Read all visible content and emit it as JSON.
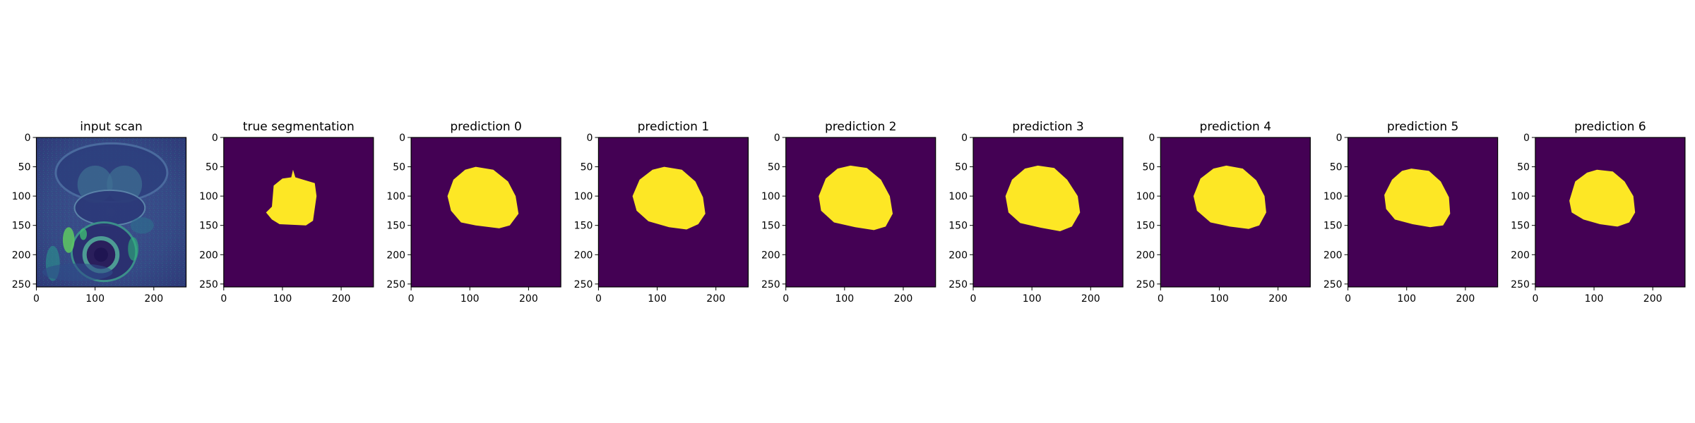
{
  "figure": {
    "colors": {
      "background": "#440154",
      "mask": "#fde725",
      "scan_dark": "#3b2b78",
      "scan_mid": "#2f6a8e",
      "scan_bright": "#5ec962"
    }
  },
  "chart_data": [
    {
      "type": "heatmap",
      "title": "input scan",
      "image": "grayscale MRI scan rendered with viridis colormap",
      "xlim": [
        0,
        255
      ],
      "ylim": [
        255,
        0
      ],
      "xticks": [
        0,
        100,
        200
      ],
      "yticks": [
        0,
        50,
        100,
        150,
        200,
        250
      ]
    },
    {
      "type": "heatmap",
      "title": "true segmentation",
      "image": "binary mask",
      "mask_outline": [
        [
          118,
          55
        ],
        [
          122,
          68
        ],
        [
          155,
          78
        ],
        [
          158,
          100
        ],
        [
          152,
          142
        ],
        [
          140,
          150
        ],
        [
          95,
          148
        ],
        [
          82,
          140
        ],
        [
          72,
          128
        ],
        [
          82,
          118
        ],
        [
          85,
          82
        ],
        [
          100,
          70
        ],
        [
          115,
          68
        ]
      ],
      "xlim": [
        0,
        255
      ],
      "ylim": [
        255,
        0
      ],
      "xticks": [
        0,
        100,
        200
      ],
      "yticks": [
        0,
        50,
        100,
        150,
        200,
        250
      ]
    },
    {
      "type": "heatmap",
      "title": "prediction 0",
      "image": "binary mask",
      "mask_outline": [
        [
          110,
          50
        ],
        [
          140,
          55
        ],
        [
          165,
          75
        ],
        [
          178,
          100
        ],
        [
          183,
          130
        ],
        [
          168,
          150
        ],
        [
          150,
          155
        ],
        [
          110,
          150
        ],
        [
          85,
          145
        ],
        [
          68,
          125
        ],
        [
          62,
          100
        ],
        [
          72,
          72
        ],
        [
          92,
          55
        ]
      ],
      "xlim": [
        0,
        255
      ],
      "ylim": [
        255,
        0
      ],
      "xticks": [
        0,
        100,
        200
      ],
      "yticks": [
        0,
        50,
        100,
        150,
        200,
        250
      ]
    },
    {
      "type": "heatmap",
      "title": "prediction 1",
      "image": "binary mask",
      "mask_outline": [
        [
          112,
          50
        ],
        [
          142,
          55
        ],
        [
          165,
          75
        ],
        [
          178,
          102
        ],
        [
          182,
          130
        ],
        [
          170,
          148
        ],
        [
          150,
          157
        ],
        [
          120,
          153
        ],
        [
          85,
          143
        ],
        [
          65,
          125
        ],
        [
          58,
          100
        ],
        [
          70,
          72
        ],
        [
          92,
          55
        ]
      ],
      "xlim": [
        0,
        255
      ],
      "ylim": [
        255,
        0
      ],
      "xticks": [
        0,
        100,
        200
      ],
      "yticks": [
        0,
        50,
        100,
        150,
        200,
        250
      ]
    },
    {
      "type": "heatmap",
      "title": "prediction 2",
      "image": "binary mask",
      "mask_outline": [
        [
          110,
          48
        ],
        [
          138,
          52
        ],
        [
          162,
          72
        ],
        [
          177,
          100
        ],
        [
          182,
          130
        ],
        [
          170,
          152
        ],
        [
          150,
          158
        ],
        [
          118,
          153
        ],
        [
          82,
          145
        ],
        [
          60,
          125
        ],
        [
          56,
          100
        ],
        [
          68,
          70
        ],
        [
          88,
          53
        ]
      ],
      "xlim": [
        0,
        255
      ],
      "ylim": [
        255,
        0
      ],
      "xticks": [
        0,
        100,
        200
      ],
      "yticks": [
        0,
        50,
        100,
        150,
        200,
        250
      ]
    },
    {
      "type": "heatmap",
      "title": "prediction 3",
      "image": "binary mask",
      "mask_outline": [
        [
          110,
          48
        ],
        [
          138,
          52
        ],
        [
          160,
          72
        ],
        [
          178,
          100
        ],
        [
          182,
          128
        ],
        [
          168,
          152
        ],
        [
          148,
          160
        ],
        [
          115,
          154
        ],
        [
          80,
          146
        ],
        [
          60,
          128
        ],
        [
          55,
          100
        ],
        [
          66,
          72
        ],
        [
          88,
          53
        ]
      ],
      "xlim": [
        0,
        255
      ],
      "ylim": [
        255,
        0
      ],
      "xticks": [
        0,
        100,
        200
      ],
      "yticks": [
        0,
        50,
        100,
        150,
        200,
        250
      ]
    },
    {
      "type": "heatmap",
      "title": "prediction 4",
      "image": "binary mask",
      "mask_outline": [
        [
          112,
          48
        ],
        [
          140,
          53
        ],
        [
          163,
          73
        ],
        [
          177,
          100
        ],
        [
          180,
          128
        ],
        [
          168,
          150
        ],
        [
          150,
          156
        ],
        [
          118,
          152
        ],
        [
          85,
          145
        ],
        [
          62,
          125
        ],
        [
          56,
          100
        ],
        [
          68,
          70
        ],
        [
          90,
          53
        ]
      ],
      "xlim": [
        0,
        255
      ],
      "ylim": [
        255,
        0
      ],
      "xticks": [
        0,
        100,
        200
      ],
      "yticks": [
        0,
        50,
        100,
        150,
        200,
        250
      ]
    },
    {
      "type": "heatmap",
      "title": "prediction 5",
      "image": "binary mask",
      "mask_outline": [
        [
          108,
          53
        ],
        [
          138,
          57
        ],
        [
          158,
          75
        ],
        [
          172,
          102
        ],
        [
          174,
          130
        ],
        [
          162,
          150
        ],
        [
          140,
          153
        ],
        [
          110,
          148
        ],
        [
          80,
          140
        ],
        [
          65,
          122
        ],
        [
          62,
          98
        ],
        [
          75,
          72
        ],
        [
          92,
          57
        ]
      ],
      "xlim": [
        0,
        255
      ],
      "ylim": [
        255,
        0
      ],
      "xticks": [
        0,
        100,
        200
      ],
      "yticks": [
        0,
        50,
        100,
        150,
        200,
        250
      ]
    },
    {
      "type": "heatmap",
      "title": "prediction 6",
      "image": "binary mask",
      "mask_outline": [
        [
          105,
          55
        ],
        [
          132,
          58
        ],
        [
          152,
          75
        ],
        [
          167,
          100
        ],
        [
          170,
          128
        ],
        [
          160,
          145
        ],
        [
          140,
          152
        ],
        [
          110,
          148
        ],
        [
          82,
          140
        ],
        [
          62,
          128
        ],
        [
          58,
          108
        ],
        [
          68,
          75
        ],
        [
          88,
          60
        ]
      ],
      "xlim": [
        0,
        255
      ],
      "ylim": [
        255,
        0
      ],
      "xticks": [
        0,
        100,
        200
      ],
      "yticks": [
        0,
        50,
        100,
        150,
        200,
        250
      ]
    }
  ]
}
